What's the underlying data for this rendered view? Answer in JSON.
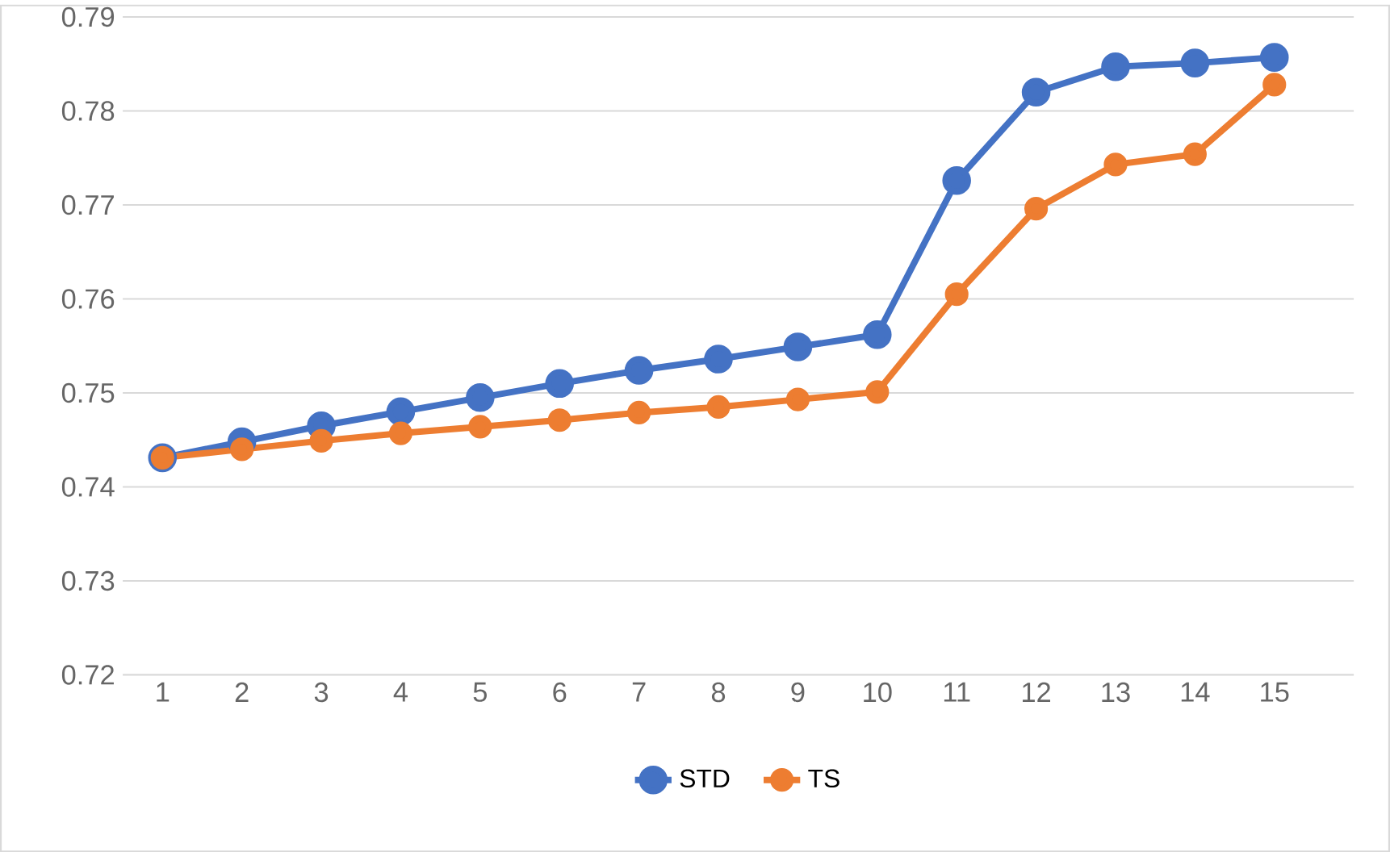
{
  "chart_data": {
    "type": "line",
    "categories": [
      "1",
      "2",
      "3",
      "4",
      "5",
      "6",
      "7",
      "8",
      "9",
      "10",
      "11",
      "12",
      "13",
      "14",
      "15"
    ],
    "series": [
      {
        "name": "STD",
        "color": "#4472c4",
        "values": [
          0.7431,
          0.7448,
          0.7465,
          0.748,
          0.7495,
          0.751,
          0.7524,
          0.7536,
          0.7549,
          0.7562,
          0.7726,
          0.782,
          0.7847,
          0.7851,
          0.7857
        ]
      },
      {
        "name": "TS",
        "color": "#ed7d31",
        "values": [
          0.7431,
          0.744,
          0.7449,
          0.7457,
          0.7464,
          0.7471,
          0.7479,
          0.7485,
          0.7493,
          0.7501,
          0.7605,
          0.7696,
          0.7743,
          0.7754,
          0.7828
        ]
      }
    ],
    "ylim": [
      0.72,
      0.79
    ],
    "yticks": [
      0.72,
      0.73,
      0.74,
      0.75,
      0.76,
      0.77,
      0.78,
      0.79
    ],
    "grid": "y",
    "legend": "bottom",
    "marker": "circle",
    "line_style": "solid"
  }
}
